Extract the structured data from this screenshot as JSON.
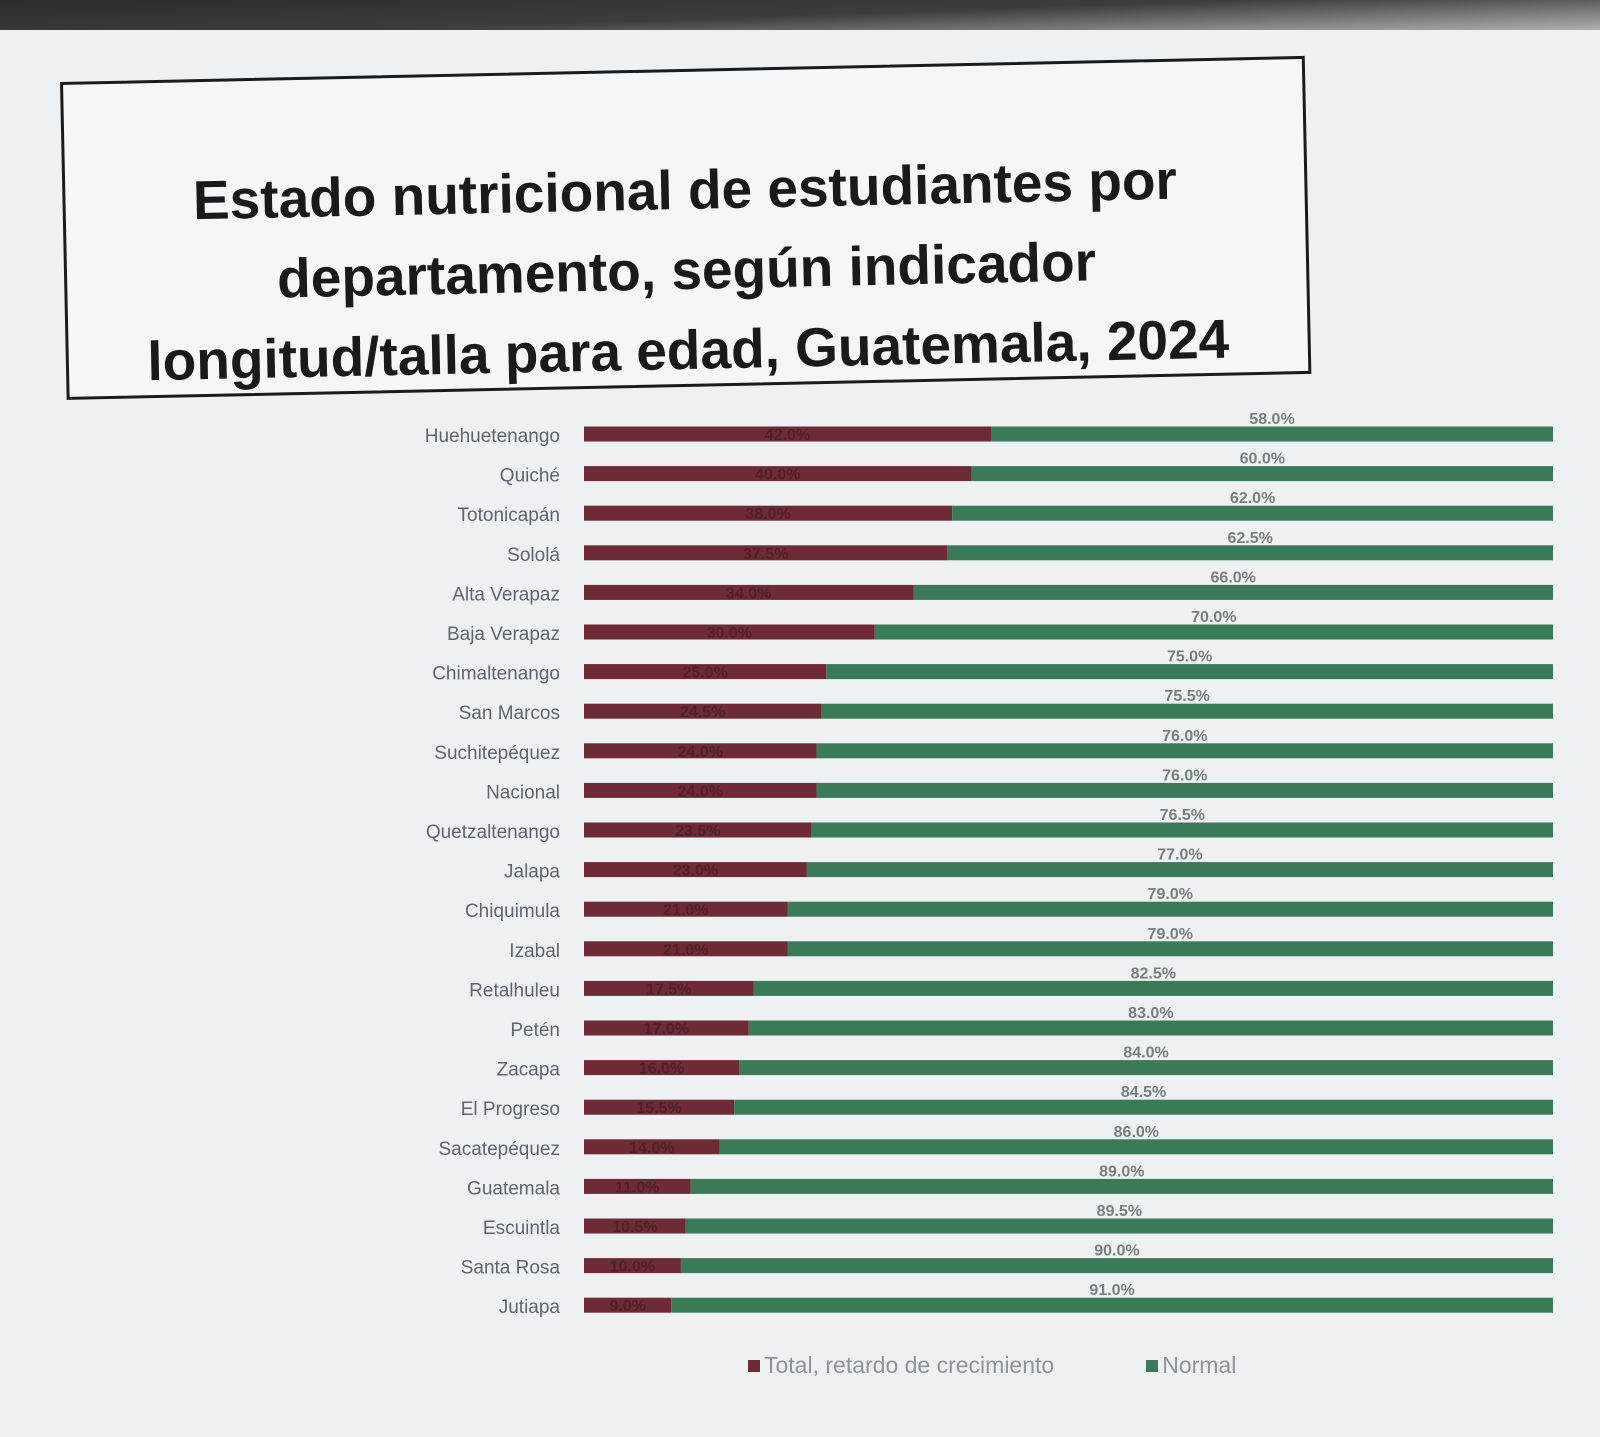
{
  "colors": {
    "retardo": "#6e2a35",
    "normal": "#3b7a57",
    "label_text": "#5e6570",
    "value_text": "#27352c"
  },
  "chart_data": {
    "type": "bar",
    "orientation": "horizontal",
    "stacked": true,
    "title": "Estado nutricional de estudiantes por\ndepartamento, según indicador\nlongitud/talla para edad, Guatemala, 2024",
    "xlim": [
      0,
      100
    ],
    "categories": [
      "Huehuetenango",
      "Quiché",
      "Totonicapán",
      "Sololá",
      "Alta Verapaz",
      "Baja Verapaz",
      "Chimaltenango",
      "San Marcos",
      "Suchitepéquez",
      "Nacional",
      "Quetzaltenango",
      "Jalapa",
      "Chiquimula",
      "Izabal",
      "Retalhuleu",
      "Petén",
      "Zacapa",
      "El Progreso",
      "Sacatepéquez",
      "Guatemala",
      "Escuintla",
      "Santa Rosa",
      "Jutiapa"
    ],
    "series": [
      {
        "name": "Total, retardo de crecimiento",
        "values": [
          42.0,
          40.0,
          38.0,
          37.5,
          34.0,
          30.0,
          25.0,
          24.5,
          24.0,
          24.0,
          23.5,
          23.0,
          21.0,
          21.0,
          17.5,
          17.0,
          16.0,
          15.5,
          14.0,
          11.0,
          10.5,
          10.0,
          9.0
        ]
      },
      {
        "name": "Normal",
        "values": [
          58.0,
          60.0,
          62.0,
          62.5,
          66.0,
          70.0,
          75.0,
          75.5,
          76.0,
          76.0,
          76.5,
          77.0,
          79.0,
          79.0,
          82.5,
          83.0,
          84.0,
          84.5,
          86.0,
          89.0,
          89.5,
          90.0,
          91.0
        ]
      }
    ],
    "legend_position": "bottom",
    "grid": false
  }
}
